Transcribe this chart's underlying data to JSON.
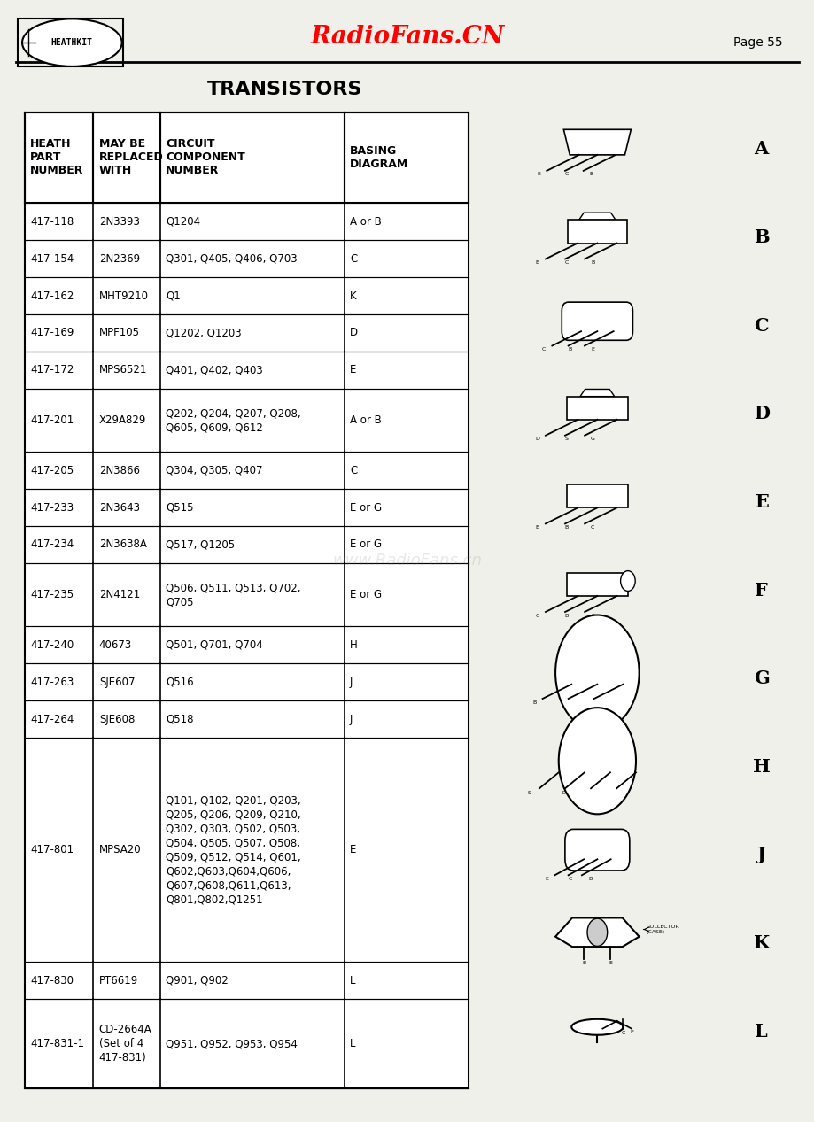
{
  "page_title": "RadioFans.CN",
  "page_number": "Page 55",
  "section_title": "TRANSISTORS",
  "bg_color": "#f0f0eb",
  "table_bg": "#ffffff",
  "headers": [
    "HEATH\nPART\nNUMBER",
    "MAY BE\nREPLACED\nWITH",
    "CIRCUIT\nCOMPONENT\nNUMBER",
    "BASING\nDIAGRAM"
  ],
  "rows": [
    [
      "417-118",
      "2N3393",
      "Q1204",
      "A or B"
    ],
    [
      "417-154",
      "2N2369",
      "Q301, Q405, Q406, Q703",
      "C"
    ],
    [
      "417-162",
      "MHT9210",
      "Q1",
      "K"
    ],
    [
      "417-169",
      "MPF105",
      "Q1202, Q1203",
      "D"
    ],
    [
      "417-172",
      "MPS6521",
      "Q401, Q402, Q403",
      "E"
    ],
    [
      "417-201",
      "X29A829",
      "Q202, Q204, Q207, Q208,\nQ605, Q609, Q612",
      "A or B"
    ],
    [
      "417-205",
      "2N3866",
      "Q304, Q305, Q407",
      "C"
    ],
    [
      "417-233",
      "2N3643",
      "Q515",
      "E or G"
    ],
    [
      "417-234",
      "2N3638A",
      "Q517, Q1205",
      "E or G"
    ],
    [
      "417-235",
      "2N4121",
      "Q506, Q511, Q513, Q702,\nQ705",
      "E or G"
    ],
    [
      "417-240",
      "40673",
      "Q501, Q701, Q704",
      "H"
    ],
    [
      "417-263",
      "SJE607",
      "Q516",
      "J"
    ],
    [
      "417-264",
      "SJE608",
      "Q518",
      "J"
    ],
    [
      "417-801",
      "MPSA20",
      "Q101, Q102, Q201, Q203,\nQ205, Q206, Q209, Q210,\nQ302, Q303, Q502, Q503,\nQ504, Q505, Q507, Q508,\nQ509, Q512, Q514, Q601,\nQ602,Q603,Q604,Q606,\nQ607,Q608,Q611,Q613,\nQ801,Q802,Q1251",
      "E"
    ],
    [
      "417-830",
      "PT6619",
      "Q901, Q902",
      "L"
    ],
    [
      "417-831-1",
      "CD-2664A\n(Set of 4\n417-831)",
      "Q951, Q952, Q953, Q954",
      "L"
    ]
  ],
  "diagram_labels": [
    "A",
    "B",
    "C",
    "D",
    "E",
    "F",
    "G",
    "H",
    "J",
    "K",
    "L"
  ]
}
